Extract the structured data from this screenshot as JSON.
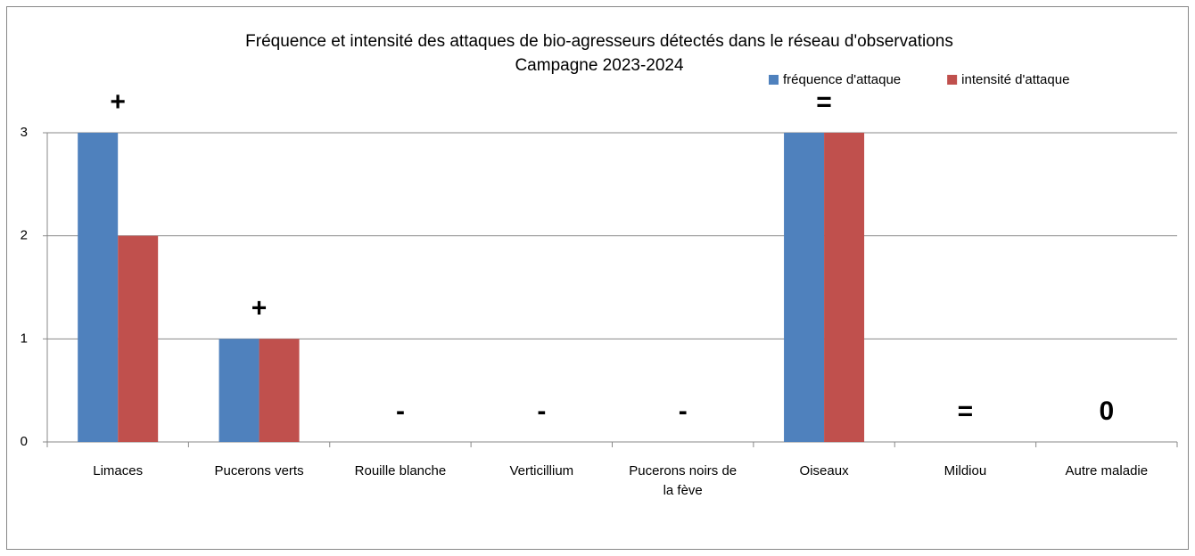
{
  "chart_data": {
    "type": "bar",
    "title": "Fréquence et intensité des attaques de bio-agresseurs détectés dans le réseau d'observations",
    "subtitle": "Campagne 2023-2024",
    "categories": [
      "Limaces",
      "Pucerons verts",
      "Rouille blanche",
      "Verticillium",
      "Pucerons noirs de la fève",
      "Oiseaux",
      "Mildiou",
      "Autre maladie"
    ],
    "series": [
      {
        "name": "fréquence d'attaque",
        "color": "#4f81bd",
        "values": [
          3,
          1,
          0,
          0,
          0,
          3,
          0,
          0
        ]
      },
      {
        "name": "intensité d'attaque",
        "color": "#c0504d",
        "values": [
          2,
          1,
          0,
          0,
          0,
          3,
          0,
          0
        ]
      }
    ],
    "annotations": [
      "+",
      "+",
      "-",
      "-",
      "-",
      "=",
      "=",
      "0"
    ],
    "annotation_colors": [
      "#ff0000",
      "#ff0000",
      "#00b050",
      "#00b050",
      "#00b050",
      "#ffc000",
      "#00b050",
      "#00b050"
    ],
    "ylim": [
      0,
      3
    ],
    "yticks": [
      0,
      1,
      2,
      3
    ],
    "grid": true,
    "legend": "top-right"
  }
}
